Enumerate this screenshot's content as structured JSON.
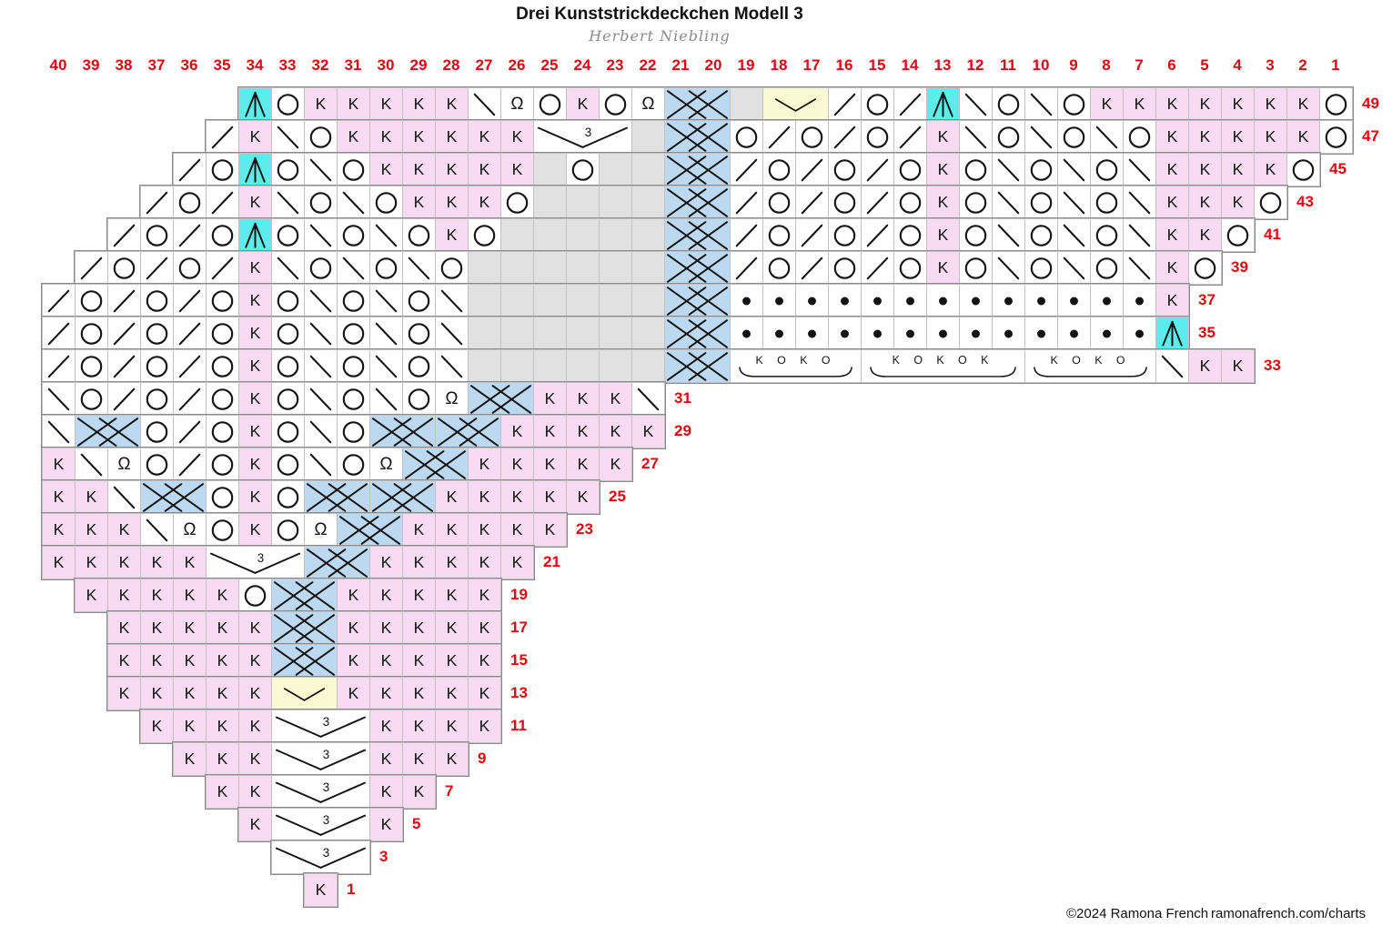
{
  "title": "Drei Kunststrickdeckchen Modell 3",
  "subtitle": "Herbert Niebling",
  "footer": {
    "copyright": "©2024 Ramona French",
    "website": "ramonafrench.com/charts"
  },
  "colors": {
    "pink": "#f8dbf3",
    "teal": "#5cecec",
    "blue": "#bdd9f1",
    "yellow": "#f9f9d2",
    "grey": "#e1e1e1",
    "red": "#e8000f",
    "ink": "#141414",
    "grid": "#c2c2c2",
    "outline": "#8a8a8a",
    "subtitle_grey": "#8a8a8a"
  },
  "glyphs": {
    "knit": "K",
    "twisted": "Ω",
    "gather_count": "3",
    "group4": "K O K O",
    "group5": "K O K O K"
  },
  "legend_names": {
    "k": "knit",
    "yo": "yarn-over",
    "rd": "k2tog",
    "ld": "ssk",
    "tbl": "knit-tbl",
    "p": "purl",
    "cdd": "central-double-decrease",
    "ns": "no-stitch",
    "cab": "cable-cross",
    "v2": "double-decrease-v",
    "g3": "gather-3",
    "g4": "cluster-koko",
    "g5": "cluster-kokok"
  },
  "grid": {
    "col_labels": [
      "40",
      "39",
      "38",
      "37",
      "36",
      "35",
      "34",
      "33",
      "32",
      "31",
      "30",
      "29",
      "28",
      "27",
      "26",
      "25",
      "24",
      "23",
      "22",
      "21",
      "20",
      "19",
      "18",
      "17",
      "16",
      "15",
      "14",
      "13",
      "12",
      "11",
      "10",
      "9",
      "8",
      "7",
      "6",
      "5",
      "4",
      "3",
      "2",
      "1"
    ],
    "rows": [
      {
        "num": "49",
        "start": 34,
        "cells": [
          "cdd",
          "yo",
          "k",
          "k",
          "k",
          "k",
          "k",
          "ld",
          "tbl",
          "yo",
          "k",
          "yo",
          "tbl",
          "cab",
          "ns",
          "v2",
          "rd",
          "yo",
          "rd",
          "cdd",
          "ld",
          "yo",
          "ld",
          "yo",
          "k",
          "k",
          "k",
          "k",
          "k",
          "k",
          "k",
          "yo"
        ]
      },
      {
        "num": "47",
        "start": 35,
        "cells": [
          "rd",
          "k",
          "ld",
          "yo",
          "k",
          "k",
          "k",
          "k",
          "k",
          "k",
          "g3",
          "ns",
          "cab",
          "yo",
          "rd",
          "yo",
          "rd",
          "yo",
          "rd",
          "k",
          "ld",
          "yo",
          "ld",
          "yo",
          "ld",
          "yo",
          "k",
          "k",
          "k",
          "k",
          "k",
          "yo"
        ]
      },
      {
        "num": "45",
        "start": 36,
        "cells": [
          "rd",
          "yo",
          "cdd",
          "yo",
          "ld",
          "yo",
          "k",
          "k",
          "k",
          "k",
          "k",
          "ns",
          "yo",
          "ns",
          "ns",
          "cab",
          "rd",
          "yo",
          "rd",
          "yo",
          "rd",
          "yo",
          "k",
          "yo",
          "ld",
          "yo",
          "ld",
          "yo",
          "ld",
          "k",
          "k",
          "k",
          "k",
          "yo"
        ]
      },
      {
        "num": "43",
        "start": 37,
        "cells": [
          "rd",
          "yo",
          "rd",
          "k",
          "ld",
          "yo",
          "ld",
          "yo",
          "k",
          "k",
          "k",
          "yo",
          "ns",
          "ns",
          "ns",
          "ns",
          "cab",
          "rd",
          "yo",
          "rd",
          "yo",
          "rd",
          "yo",
          "k",
          "yo",
          "ld",
          "yo",
          "ld",
          "yo",
          "ld",
          "k",
          "k",
          "k",
          "yo"
        ]
      },
      {
        "num": "41",
        "start": 38,
        "cells": [
          "rd",
          "yo",
          "rd",
          "yo",
          "cdd",
          "yo",
          "ld",
          "yo",
          "ld",
          "yo",
          "k",
          "yo",
          "ns",
          "ns",
          "ns",
          "ns",
          "ns",
          "cab",
          "rd",
          "yo",
          "rd",
          "yo",
          "rd",
          "yo",
          "k",
          "yo",
          "ld",
          "yo",
          "ld",
          "yo",
          "ld",
          "k",
          "k",
          "yo"
        ]
      },
      {
        "num": "39",
        "start": 39,
        "cells": [
          "rd",
          "yo",
          "rd",
          "yo",
          "rd",
          "k",
          "ld",
          "yo",
          "ld",
          "yo",
          "ld",
          "yo",
          "ns",
          "ns",
          "ns",
          "ns",
          "ns",
          "ns",
          "cab",
          "rd",
          "yo",
          "rd",
          "yo",
          "rd",
          "yo",
          "k",
          "yo",
          "ld",
          "yo",
          "ld",
          "yo",
          "ld",
          "k",
          "yo"
        ]
      },
      {
        "num": "37",
        "start": 40,
        "cells": [
          "rd",
          "yo",
          "rd",
          "yo",
          "rd",
          "yo",
          "k",
          "yo",
          "ld",
          "yo",
          "ld",
          "yo",
          "ld",
          "ns",
          "ns",
          "ns",
          "ns",
          "ns",
          "ns",
          "cab",
          "p",
          "p",
          "p",
          "p",
          "p",
          "p",
          "p",
          "p",
          "p",
          "p",
          "p",
          "p",
          "p",
          "k"
        ]
      },
      {
        "num": "35",
        "start": 40,
        "cells": [
          "rd",
          "yo",
          "rd",
          "yo",
          "rd",
          "yo",
          "k",
          "yo",
          "ld",
          "yo",
          "ld",
          "yo",
          "ld",
          "ns",
          "ns",
          "ns",
          "ns",
          "ns",
          "ns",
          "cab",
          "p",
          "p",
          "p",
          "p",
          "p",
          "p",
          "p",
          "p",
          "p",
          "p",
          "p",
          "p",
          "p",
          "cdd"
        ]
      },
      {
        "num": "33",
        "start": 40,
        "cells": [
          "rd",
          "yo",
          "rd",
          "yo",
          "rd",
          "yo",
          "k",
          "yo",
          "ld",
          "yo",
          "ld",
          "yo",
          "ld",
          "ns",
          "ns",
          "ns",
          "ns",
          "ns",
          "ns",
          "cab",
          "g4",
          "g5",
          "g4",
          "ld",
          "k",
          "k"
        ]
      },
      {
        "num": "31",
        "start": 40,
        "cells": [
          "ld",
          "yo",
          "rd",
          "yo",
          "rd",
          "yo",
          "k",
          "yo",
          "ld",
          "yo",
          "ld",
          "yo",
          "tbl",
          "cab",
          "k",
          "k",
          "k",
          "ld"
        ]
      },
      {
        "num": "29",
        "start": 40,
        "cells": [
          "ld",
          "cab",
          "yo",
          "rd",
          "yo",
          "k",
          "yo",
          "ld",
          "yo",
          "cab",
          "cab",
          "k",
          "k",
          "k",
          "k",
          "k"
        ]
      },
      {
        "num": "27",
        "start": 40,
        "cells": [
          "k",
          "ld",
          "tbl",
          "yo",
          "rd",
          "yo",
          "k",
          "yo",
          "ld",
          "yo",
          "tbl",
          "cab",
          "k",
          "k",
          "k",
          "k",
          "k"
        ]
      },
      {
        "num": "25",
        "start": 40,
        "cells": [
          "k",
          "k",
          "ld",
          "cab",
          "yo",
          "k",
          "yo",
          "cab",
          "cab",
          "k",
          "k",
          "k",
          "k",
          "k"
        ]
      },
      {
        "num": "23",
        "start": 40,
        "cells": [
          "k",
          "k",
          "k",
          "ld",
          "tbl",
          "yo",
          "k",
          "yo",
          "tbl",
          "cab",
          "k",
          "k",
          "k",
          "k",
          "k"
        ]
      },
      {
        "num": "21",
        "start": 40,
        "cells": [
          "k",
          "k",
          "k",
          "k",
          "k",
          "g3",
          "cab",
          "k",
          "k",
          "k",
          "k",
          "k"
        ]
      },
      {
        "num": "19",
        "start": 39,
        "cells": [
          "k",
          "k",
          "k",
          "k",
          "k",
          "yo",
          "cab",
          "k",
          "k",
          "k",
          "k",
          "k"
        ]
      },
      {
        "num": "17",
        "start": 38,
        "cells": [
          "k",
          "k",
          "k",
          "k",
          "k",
          "cab",
          "k",
          "k",
          "k",
          "k",
          "k"
        ]
      },
      {
        "num": "15",
        "start": 38,
        "cells": [
          "k",
          "k",
          "k",
          "k",
          "k",
          "cab",
          "k",
          "k",
          "k",
          "k",
          "k"
        ]
      },
      {
        "num": "13",
        "start": 38,
        "cells": [
          "k",
          "k",
          "k",
          "k",
          "k",
          "v2",
          "k",
          "k",
          "k",
          "k",
          "k"
        ]
      },
      {
        "num": "11",
        "start": 37,
        "cells": [
          "k",
          "k",
          "k",
          "k",
          "g3",
          "k",
          "k",
          "k",
          "k"
        ]
      },
      {
        "num": "9",
        "start": 36,
        "cells": [
          "k",
          "k",
          "k",
          "g3",
          "k",
          "k",
          "k"
        ]
      },
      {
        "num": "7",
        "start": 35,
        "cells": [
          "k",
          "k",
          "g3",
          "k",
          "k"
        ]
      },
      {
        "num": "5",
        "start": 34,
        "cells": [
          "k",
          "g3",
          "k"
        ]
      },
      {
        "num": "3",
        "start": 33,
        "cells": [
          "g3"
        ]
      },
      {
        "num": "1",
        "start": 32,
        "cells": [
          "k"
        ]
      }
    ]
  }
}
